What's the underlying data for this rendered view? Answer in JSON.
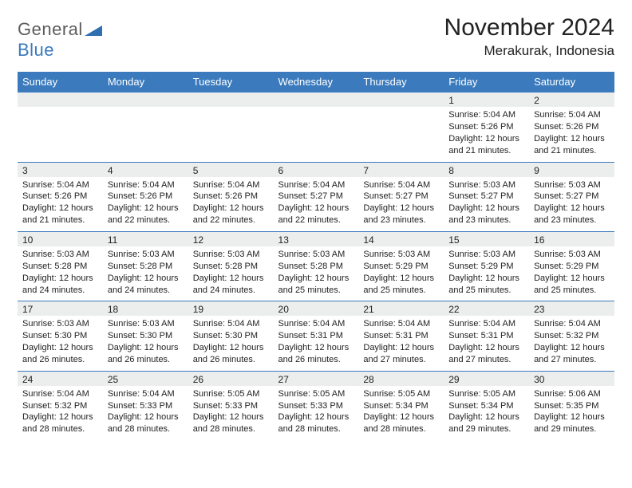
{
  "brand": {
    "text_general": "General",
    "text_blue": "Blue",
    "logo_fill": "#2f6fb0"
  },
  "title": "November 2024",
  "location": "Merakurak, Indonesia",
  "colors": {
    "header_bg": "#3a7abd",
    "header_text": "#ffffff",
    "daynum_bg": "#eceded",
    "cell_border": "#3a7abd",
    "body_text": "#222222"
  },
  "day_headers": [
    "Sunday",
    "Monday",
    "Tuesday",
    "Wednesday",
    "Thursday",
    "Friday",
    "Saturday"
  ],
  "weeks": [
    [
      {
        "n": "",
        "lines": []
      },
      {
        "n": "",
        "lines": []
      },
      {
        "n": "",
        "lines": []
      },
      {
        "n": "",
        "lines": []
      },
      {
        "n": "",
        "lines": []
      },
      {
        "n": "1",
        "lines": [
          "Sunrise: 5:04 AM",
          "Sunset: 5:26 PM",
          "Daylight: 12 hours",
          "and 21 minutes."
        ]
      },
      {
        "n": "2",
        "lines": [
          "Sunrise: 5:04 AM",
          "Sunset: 5:26 PM",
          "Daylight: 12 hours",
          "and 21 minutes."
        ]
      }
    ],
    [
      {
        "n": "3",
        "lines": [
          "Sunrise: 5:04 AM",
          "Sunset: 5:26 PM",
          "Daylight: 12 hours",
          "and 21 minutes."
        ]
      },
      {
        "n": "4",
        "lines": [
          "Sunrise: 5:04 AM",
          "Sunset: 5:26 PM",
          "Daylight: 12 hours",
          "and 22 minutes."
        ]
      },
      {
        "n": "5",
        "lines": [
          "Sunrise: 5:04 AM",
          "Sunset: 5:26 PM",
          "Daylight: 12 hours",
          "and 22 minutes."
        ]
      },
      {
        "n": "6",
        "lines": [
          "Sunrise: 5:04 AM",
          "Sunset: 5:27 PM",
          "Daylight: 12 hours",
          "and 22 minutes."
        ]
      },
      {
        "n": "7",
        "lines": [
          "Sunrise: 5:04 AM",
          "Sunset: 5:27 PM",
          "Daylight: 12 hours",
          "and 23 minutes."
        ]
      },
      {
        "n": "8",
        "lines": [
          "Sunrise: 5:03 AM",
          "Sunset: 5:27 PM",
          "Daylight: 12 hours",
          "and 23 minutes."
        ]
      },
      {
        "n": "9",
        "lines": [
          "Sunrise: 5:03 AM",
          "Sunset: 5:27 PM",
          "Daylight: 12 hours",
          "and 23 minutes."
        ]
      }
    ],
    [
      {
        "n": "10",
        "lines": [
          "Sunrise: 5:03 AM",
          "Sunset: 5:28 PM",
          "Daylight: 12 hours",
          "and 24 minutes."
        ]
      },
      {
        "n": "11",
        "lines": [
          "Sunrise: 5:03 AM",
          "Sunset: 5:28 PM",
          "Daylight: 12 hours",
          "and 24 minutes."
        ]
      },
      {
        "n": "12",
        "lines": [
          "Sunrise: 5:03 AM",
          "Sunset: 5:28 PM",
          "Daylight: 12 hours",
          "and 24 minutes."
        ]
      },
      {
        "n": "13",
        "lines": [
          "Sunrise: 5:03 AM",
          "Sunset: 5:28 PM",
          "Daylight: 12 hours",
          "and 25 minutes."
        ]
      },
      {
        "n": "14",
        "lines": [
          "Sunrise: 5:03 AM",
          "Sunset: 5:29 PM",
          "Daylight: 12 hours",
          "and 25 minutes."
        ]
      },
      {
        "n": "15",
        "lines": [
          "Sunrise: 5:03 AM",
          "Sunset: 5:29 PM",
          "Daylight: 12 hours",
          "and 25 minutes."
        ]
      },
      {
        "n": "16",
        "lines": [
          "Sunrise: 5:03 AM",
          "Sunset: 5:29 PM",
          "Daylight: 12 hours",
          "and 25 minutes."
        ]
      }
    ],
    [
      {
        "n": "17",
        "lines": [
          "Sunrise: 5:03 AM",
          "Sunset: 5:30 PM",
          "Daylight: 12 hours",
          "and 26 minutes."
        ]
      },
      {
        "n": "18",
        "lines": [
          "Sunrise: 5:03 AM",
          "Sunset: 5:30 PM",
          "Daylight: 12 hours",
          "and 26 minutes."
        ]
      },
      {
        "n": "19",
        "lines": [
          "Sunrise: 5:04 AM",
          "Sunset: 5:30 PM",
          "Daylight: 12 hours",
          "and 26 minutes."
        ]
      },
      {
        "n": "20",
        "lines": [
          "Sunrise: 5:04 AM",
          "Sunset: 5:31 PM",
          "Daylight: 12 hours",
          "and 26 minutes."
        ]
      },
      {
        "n": "21",
        "lines": [
          "Sunrise: 5:04 AM",
          "Sunset: 5:31 PM",
          "Daylight: 12 hours",
          "and 27 minutes."
        ]
      },
      {
        "n": "22",
        "lines": [
          "Sunrise: 5:04 AM",
          "Sunset: 5:31 PM",
          "Daylight: 12 hours",
          "and 27 minutes."
        ]
      },
      {
        "n": "23",
        "lines": [
          "Sunrise: 5:04 AM",
          "Sunset: 5:32 PM",
          "Daylight: 12 hours",
          "and 27 minutes."
        ]
      }
    ],
    [
      {
        "n": "24",
        "lines": [
          "Sunrise: 5:04 AM",
          "Sunset: 5:32 PM",
          "Daylight: 12 hours",
          "and 28 minutes."
        ]
      },
      {
        "n": "25",
        "lines": [
          "Sunrise: 5:04 AM",
          "Sunset: 5:33 PM",
          "Daylight: 12 hours",
          "and 28 minutes."
        ]
      },
      {
        "n": "26",
        "lines": [
          "Sunrise: 5:05 AM",
          "Sunset: 5:33 PM",
          "Daylight: 12 hours",
          "and 28 minutes."
        ]
      },
      {
        "n": "27",
        "lines": [
          "Sunrise: 5:05 AM",
          "Sunset: 5:33 PM",
          "Daylight: 12 hours",
          "and 28 minutes."
        ]
      },
      {
        "n": "28",
        "lines": [
          "Sunrise: 5:05 AM",
          "Sunset: 5:34 PM",
          "Daylight: 12 hours",
          "and 28 minutes."
        ]
      },
      {
        "n": "29",
        "lines": [
          "Sunrise: 5:05 AM",
          "Sunset: 5:34 PM",
          "Daylight: 12 hours",
          "and 29 minutes."
        ]
      },
      {
        "n": "30",
        "lines": [
          "Sunrise: 5:06 AM",
          "Sunset: 5:35 PM",
          "Daylight: 12 hours",
          "and 29 minutes."
        ]
      }
    ]
  ]
}
